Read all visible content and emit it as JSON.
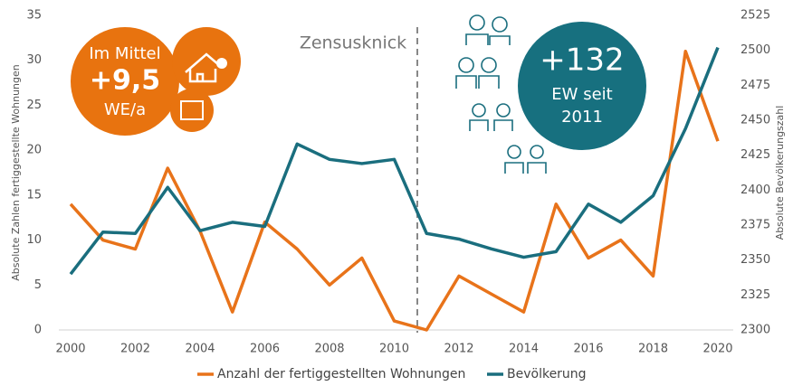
{
  "chart_data": {
    "type": "line",
    "x": [
      2000,
      2001,
      2002,
      2003,
      2004,
      2005,
      2006,
      2007,
      2008,
      2009,
      2010,
      2011,
      2012,
      2013,
      2014,
      2015,
      2016,
      2017,
      2018,
      2019,
      2020
    ],
    "xlim": [
      2000,
      2020
    ],
    "xticks": [
      2000,
      2002,
      2004,
      2006,
      2008,
      2010,
      2012,
      2014,
      2016,
      2018,
      2020
    ],
    "ylim": [
      0,
      35
    ],
    "yticks": [
      0,
      5,
      10,
      15,
      20,
      25,
      30,
      35
    ],
    "y2lim": [
      2300,
      2525
    ],
    "y2ticks": [
      2300,
      2325,
      2350,
      2375,
      2400,
      2425,
      2450,
      2475,
      2500,
      2525
    ],
    "y_label": "Absolute Zahlen fertiggestellte Wohnungen",
    "y2_label": "Absolute Bevölkerungszahl",
    "series": [
      {
        "name": "Anzahl der fertiggestellten Wohnungen",
        "color": "#e8731a",
        "values": [
          14,
          10,
          9,
          18,
          11,
          2,
          12,
          9,
          5,
          8,
          1,
          0,
          6,
          4,
          2,
          14,
          8,
          10,
          6,
          31,
          21
        ]
      },
      {
        "name": "Bevölkerung",
        "color": "#1a6e7e",
        "axis": "y2",
        "values": [
          2340,
          2370,
          2369,
          2402,
          2371,
          2377,
          2374,
          2433,
          2422,
          2419,
          2422,
          2369,
          2365,
          2358,
          2352,
          2356,
          2390,
          2377,
          2396,
          2444,
          2502
        ]
      }
    ],
    "grid": false,
    "annotations": {
      "break": "Zensusknick",
      "housing": [
        "Im Mittel",
        "+9,5",
        "WE/a"
      ],
      "population": [
        "+132",
        "EW seit",
        "2011"
      ]
    }
  }
}
